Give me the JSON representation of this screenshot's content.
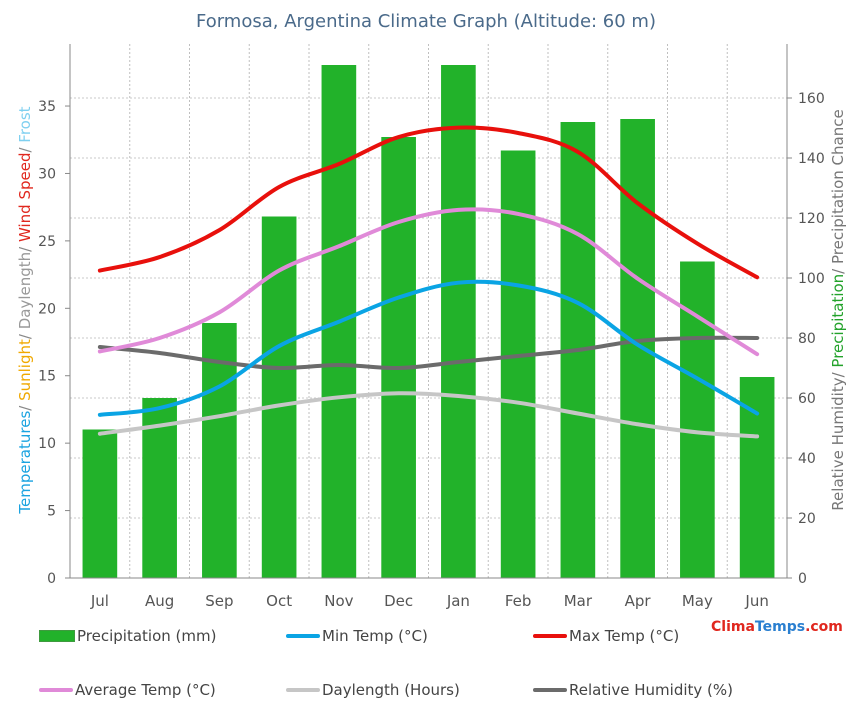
{
  "chart_data": {
    "type": "bar",
    "title": "Formosa, Argentina Climate Graph (Altitude: 60 m)",
    "categories": [
      "Jul",
      "Aug",
      "Sep",
      "Oct",
      "Nov",
      "Dec",
      "Jan",
      "Feb",
      "Mar",
      "Apr",
      "May",
      "Jun"
    ],
    "left_axis": {
      "label_parts": [
        {
          "text": "Temperatures",
          "color": "#1aa3e0"
        },
        {
          "text": "/ ",
          "color": "#888888"
        },
        {
          "text": "Sunlight",
          "color": "#f0a800"
        },
        {
          "text": "/ ",
          "color": "#888888"
        },
        {
          "text": "Daylength",
          "color": "#999999"
        },
        {
          "text": "/ ",
          "color": "#888888"
        },
        {
          "text": "Wind Speed",
          "color": "#e0271e"
        },
        {
          "text": "/ ",
          "color": "#888888"
        },
        {
          "text": "Frost",
          "color": "#7fd0f0"
        }
      ],
      "ylim": [
        0,
        39.6
      ],
      "ticks": [
        0,
        5,
        10,
        15,
        20,
        25,
        30,
        35
      ]
    },
    "right_axis": {
      "label_parts": [
        {
          "text": "Relative Humidity",
          "color": "#777777"
        },
        {
          "text": "/ ",
          "color": "#777777"
        },
        {
          "text": "Precipitation",
          "color": "#22a22a"
        },
        {
          "text": "/ ",
          "color": "#777777"
        },
        {
          "text": "Precipitation Chance",
          "color": "#777777"
        }
      ],
      "ylim": [
        0,
        178
      ],
      "ticks": [
        0,
        20,
        40,
        60,
        80,
        100,
        120,
        140,
        160
      ]
    },
    "bar_series": {
      "name": "Precipitation (mm)",
      "color": "#22b22a",
      "axis": "right",
      "values": [
        49.5,
        60,
        85,
        120.5,
        171,
        147,
        171,
        142.5,
        152,
        153,
        105.5,
        67
      ]
    },
    "line_series": [
      {
        "name": "Min Temp (°C)",
        "color": "#0aa4e4",
        "axis": "left",
        "values": [
          12.1,
          12.6,
          14.2,
          17.2,
          19.0,
          20.8,
          21.9,
          21.7,
          20.4,
          17.3,
          14.8,
          12.2
        ]
      },
      {
        "name": "Max Temp (°C)",
        "color": "#e8100c",
        "axis": "left",
        "values": [
          22.8,
          23.8,
          25.8,
          29.0,
          30.7,
          32.7,
          33.4,
          33.0,
          31.6,
          27.8,
          24.8,
          22.3
        ]
      },
      {
        "name": "Average Temp (°C)",
        "color": "#e08ad8",
        "axis": "left",
        "values": [
          16.8,
          17.8,
          19.7,
          22.8,
          24.6,
          26.4,
          27.3,
          27.0,
          25.5,
          22.2,
          19.4,
          16.6
        ]
      },
      {
        "name": "Daylength (Hours)",
        "color": "#c6c6c6",
        "axis": "left",
        "values": [
          10.7,
          11.3,
          12.0,
          12.8,
          13.4,
          13.7,
          13.5,
          13.0,
          12.2,
          11.4,
          10.8,
          10.5
        ]
      },
      {
        "name": "Relative Humidity (%)",
        "color": "#6b6b6b",
        "axis": "right",
        "values": [
          77,
          75,
          72,
          70,
          71,
          70,
          72,
          74,
          76,
          79,
          80,
          80
        ]
      }
    ]
  },
  "legend": {
    "precipitation": "Precipitation (mm)",
    "min_temp": "Min Temp (°C)",
    "max_temp": "Max Temp (°C)",
    "avg_temp": "Average Temp (°C)",
    "daylength": "Daylength (Hours)",
    "humidity": "Relative Humidity (%)"
  },
  "brand": {
    "part1": "Clima",
    "part2": "Temps",
    "part3": ".com"
  }
}
